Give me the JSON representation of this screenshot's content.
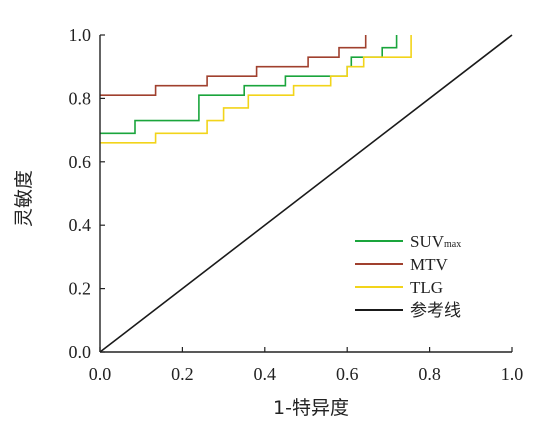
{
  "chart_data": {
    "type": "line",
    "title": "",
    "xlabel": "1-特异度",
    "ylabel": "灵敏度",
    "xlim": [
      0,
      1
    ],
    "ylim": [
      0,
      1
    ],
    "x_ticks": [
      "0.0",
      "0.2",
      "0.4",
      "0.6",
      "0.8",
      "1.0"
    ],
    "y_ticks": [
      "0.0",
      "0.2",
      "0.4",
      "0.6",
      "0.8",
      "1.0"
    ],
    "grid": false,
    "legend_position": "lower-right",
    "series": [
      {
        "label": "SUV",
        "label_subscript": "max",
        "color": "#1aa53c",
        "step": true,
        "points": [
          [
            0,
            0.69
          ],
          [
            0.085,
            0.69
          ],
          [
            0.085,
            0.73
          ],
          [
            0.24,
            0.73
          ],
          [
            0.24,
            0.81
          ],
          [
            0.35,
            0.81
          ],
          [
            0.35,
            0.84
          ],
          [
            0.45,
            0.84
          ],
          [
            0.45,
            0.87
          ],
          [
            0.6,
            0.87
          ],
          [
            0.6,
            0.9
          ],
          [
            0.61,
            0.9
          ],
          [
            0.61,
            0.93
          ],
          [
            0.685,
            0.93
          ],
          [
            0.685,
            0.96
          ],
          [
            0.72,
            0.96
          ],
          [
            0.72,
            1.0
          ]
        ]
      },
      {
        "label": "MTV",
        "color": "#a0402e",
        "step": true,
        "points": [
          [
            0,
            0.81
          ],
          [
            0.135,
            0.81
          ],
          [
            0.135,
            0.84
          ],
          [
            0.26,
            0.84
          ],
          [
            0.26,
            0.87
          ],
          [
            0.38,
            0.87
          ],
          [
            0.38,
            0.9
          ],
          [
            0.505,
            0.9
          ],
          [
            0.505,
            0.93
          ],
          [
            0.58,
            0.93
          ],
          [
            0.58,
            0.96
          ],
          [
            0.645,
            0.96
          ],
          [
            0.645,
            1.0
          ]
        ]
      },
      {
        "label": "TLG",
        "color": "#f2d41a",
        "step": true,
        "points": [
          [
            0,
            0.66
          ],
          [
            0.135,
            0.66
          ],
          [
            0.135,
            0.69
          ],
          [
            0.26,
            0.69
          ],
          [
            0.26,
            0.73
          ],
          [
            0.3,
            0.73
          ],
          [
            0.3,
            0.77
          ],
          [
            0.36,
            0.77
          ],
          [
            0.36,
            0.81
          ],
          [
            0.47,
            0.81
          ],
          [
            0.47,
            0.84
          ],
          [
            0.56,
            0.84
          ],
          [
            0.56,
            0.87
          ],
          [
            0.6,
            0.87
          ],
          [
            0.6,
            0.9
          ],
          [
            0.64,
            0.9
          ],
          [
            0.64,
            0.93
          ],
          [
            0.755,
            0.93
          ],
          [
            0.755,
            1.0
          ]
        ]
      },
      {
        "label": "参考线",
        "color": "#1a1a1a",
        "step": false,
        "points": [
          [
            0,
            0
          ],
          [
            1,
            1
          ]
        ]
      }
    ]
  }
}
